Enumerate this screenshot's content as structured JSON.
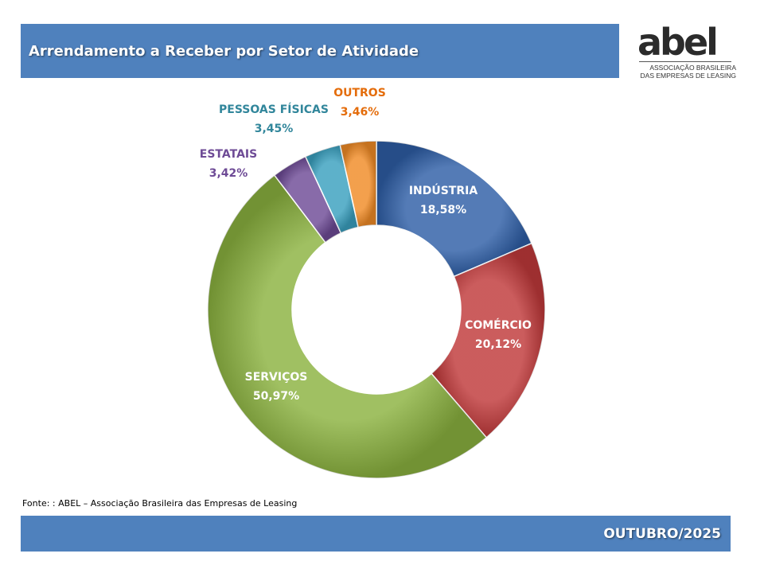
{
  "header": {
    "title": "Arrendamento a Receber por Setor de Atividade"
  },
  "logo": {
    "word": "abel",
    "line1": "ASSOCIAÇÃO BRASILEIRA",
    "line2": "DAS EMPRESAS DE LEASING"
  },
  "chart_data": {
    "type": "pie",
    "style": "doughnut",
    "title": "",
    "slices": [
      {
        "label": "INDÚSTRIA",
        "value": 18.58,
        "value_label": "18,58%",
        "color": "#2e5ea6",
        "label_color": "#ffffff"
      },
      {
        "label": "COMÉRCIO",
        "value": 20.12,
        "value_label": "20,12%",
        "color": "#c0393a",
        "label_color": "#ffffff"
      },
      {
        "label": "SERVIÇOS",
        "value": 50.97,
        "value_label": "50,97%",
        "color": "#8bb23f",
        "label_color": "#ffffff"
      },
      {
        "label": "ESTATAIS",
        "value": 3.42,
        "value_label": "3,42%",
        "color": "#6e4b96",
        "label_color": "#6e4b96"
      },
      {
        "label": "PESSOAS FÍSICAS",
        "value": 3.45,
        "value_label": "3,45%",
        "color": "#3aa0bf",
        "label_color": "#31869b"
      },
      {
        "label": "OUTROS",
        "value": 3.46,
        "value_label": "3,46%",
        "color": "#f08b26",
        "label_color": "#e46c0a"
      }
    ]
  },
  "source": {
    "text": "Fonte: : ABEL – Associação Brasileira das Empresas de Leasing"
  },
  "footer": {
    "period": "OUTUBRO/2025"
  }
}
